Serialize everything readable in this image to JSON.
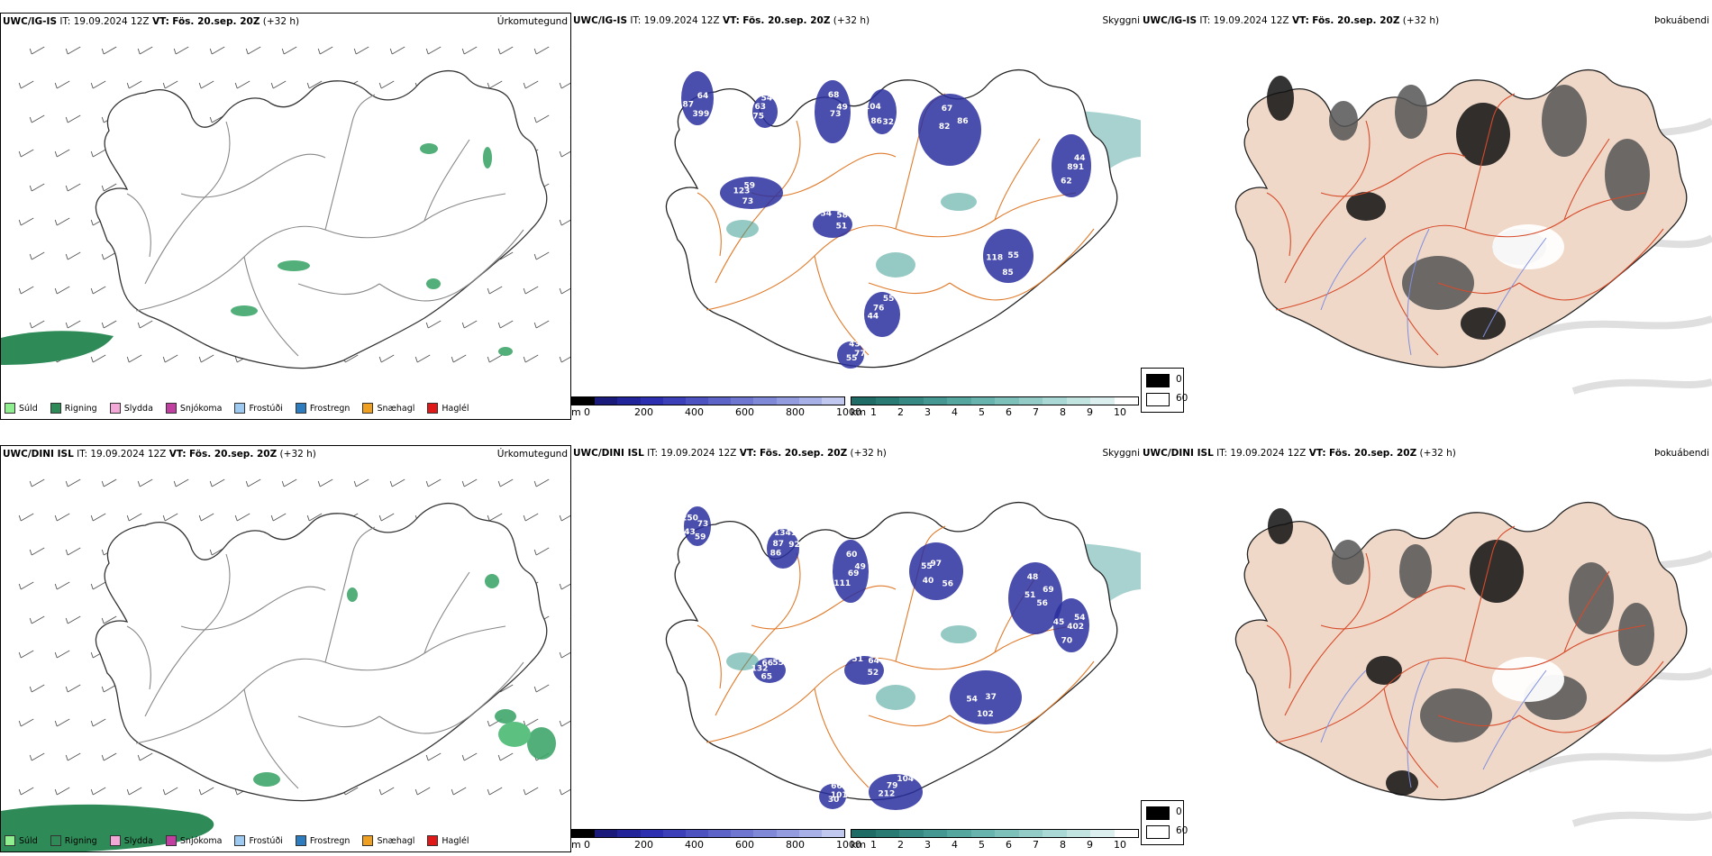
{
  "colors": {
    "ocean": "#ffffff",
    "coast": "#222222",
    "road": "#e07a2a",
    "road_red": "#d64b2a",
    "river": "#7f8fe0",
    "land_fog": "#f0d8c8",
    "cloud_dark": "#111111",
    "cloud_blue": "#2a2f9e",
    "vis_teal": "#3e9c94"
  },
  "rows": [
    {
      "precip": {
        "model": "UWC/IG-IS",
        "it": "IT: 19.09.2024 12Z",
        "vt_label": "VT:",
        "vt": "Fös. 20.sep. 20Z",
        "offset": "(+32 h)",
        "name": "Úrkomutegund"
      },
      "cloud": {
        "model": "UWC/IG-IS",
        "it": "IT: 19.09.2024 12Z",
        "vt_label": "VT:",
        "vt": "Fös. 20.sep. 20Z",
        "offset": "(+32 h)",
        "name": "Skyggni"
      },
      "fog": {
        "model": "UWC/IG-IS",
        "it": "IT: 19.09.2024 12Z",
        "vt_label": "VT:",
        "vt": "Fös. 20.sep. 20Z",
        "offset": "(+32 h)",
        "name": "Þokuábendi"
      },
      "labels": [
        "64",
        "75",
        "68",
        "32",
        "82",
        "44",
        "73",
        "54",
        "55",
        "44",
        "43",
        "399",
        "63",
        "49",
        "86",
        "67",
        "891",
        "123",
        "58",
        "85",
        "76",
        "77",
        "87",
        "54",
        "73",
        "104",
        "86",
        "62",
        "59",
        "51",
        "118",
        "55",
        "55"
      ]
    },
    {
      "precip": {
        "model": "UWC/DINI ISL",
        "it": "IT: 19.09.2024 12Z",
        "vt_label": "VT:",
        "vt": "Fös. 20.sep. 20Z",
        "offset": "(+32 h)",
        "name": "Úrkomutegund"
      },
      "cloud": {
        "model": "UWC/DINI ISL",
        "it": "IT: 19.09.2024 12Z",
        "vt_label": "VT:",
        "vt": "Fös. 20.sep. 20Z",
        "offset": "(+32 h)",
        "name": "Skyggni"
      },
      "fog": {
        "model": "UWC/DINI ISL",
        "it": "IT: 19.09.2024 12Z",
        "vt_label": "VT:",
        "vt": "Fös. 20.sep. 20Z",
        "offset": "(+32 h)",
        "name": "Þokuábendi"
      },
      "labels": [
        "73",
        "86",
        "60",
        "56",
        "51",
        "54",
        "65",
        "51",
        "37",
        "212",
        "66",
        "59",
        "87",
        "49",
        "40",
        "48",
        "402",
        "132",
        "64",
        "102",
        "79",
        "1011",
        "43",
        "1341",
        "69",
        "55",
        "69",
        "70",
        "66",
        "52",
        "54",
        "104",
        "30",
        "250",
        "92",
        "111",
        "97",
        "56",
        "45",
        "55"
      ]
    }
  ],
  "precip_legend": [
    {
      "label": "Súld",
      "color": "#90ee90"
    },
    {
      "label": "Rigning",
      "color": "#2e8b57"
    },
    {
      "label": "Slydda",
      "color": "#f4a8d8"
    },
    {
      "label": "Snjókoma",
      "color": "#c03fa0"
    },
    {
      "label": "Frostúði",
      "color": "#9ccaf0"
    },
    {
      "label": "Frostregn",
      "color": "#2e7cc0"
    },
    {
      "label": "Snæhagl",
      "color": "#f0a020"
    },
    {
      "label": "Haglél",
      "color": "#e01818"
    }
  ],
  "cloud_base_bar": {
    "unit": "m",
    "ticks": [
      "0",
      "200",
      "400",
      "600",
      "800",
      "1000"
    ],
    "colors": [
      "#000000",
      "#1a1a7a",
      "#22249a",
      "#2c30b0",
      "#3c40b8",
      "#4c52c0",
      "#5c64c8",
      "#6e76d0",
      "#8088d8",
      "#949ce0",
      "#a8b0e8",
      "#c0c8f0"
    ]
  },
  "visibility_bar": {
    "unit": "km",
    "ticks": [
      "1",
      "2",
      "3",
      "4",
      "5",
      "6",
      "7",
      "8",
      "9",
      "10"
    ],
    "colors": [
      "#1f6b66",
      "#2a7a74",
      "#378a83",
      "#459892",
      "#56a6a0",
      "#68b3ad",
      "#7dc0ba",
      "#93ccc7",
      "#aad8d4",
      "#c2e4e1",
      "#dbf0ee",
      "#ffffff"
    ]
  },
  "fog_legend": {
    "low": "0",
    "high": "60"
  }
}
